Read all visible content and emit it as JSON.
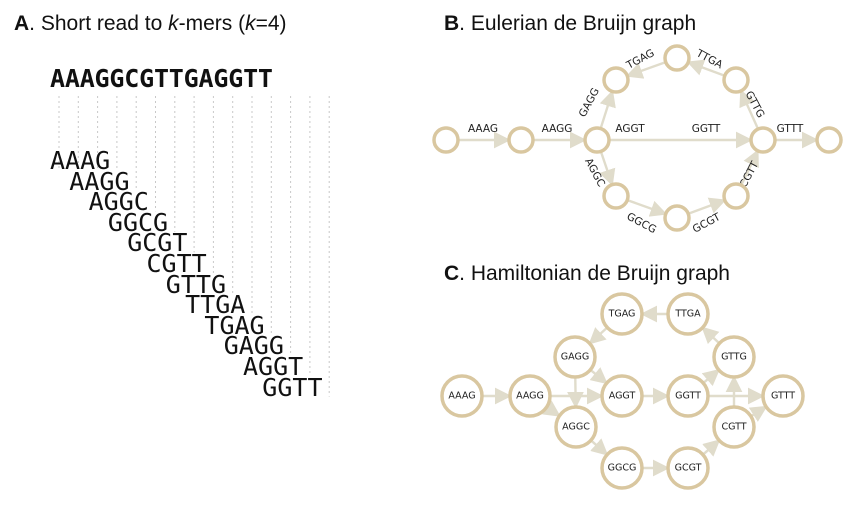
{
  "panel_a": {
    "letter": "A",
    "title_text": ". Short read to ",
    "title_k": "k",
    "title_suffix": "-mers (",
    "title_k2": "k",
    "title_eq": "=4)",
    "read": "AAAGGCGTTGAGGTT",
    "kmers": [
      "AAAG",
      "AAGG",
      "AGGC",
      "GGCG",
      "GCGT",
      "CGTT",
      "GTTG",
      "TTGA",
      "TGAG",
      "GAGG",
      "AGGT",
      "GGTT"
    ]
  },
  "panel_b": {
    "letter": "B",
    "title_text": ". Eulerian de Bruijn graph",
    "edge_labels": [
      "AAAG",
      "AAGG",
      "AGGT",
      "GGTT",
      "GTTT",
      "GAGG",
      "TGAG",
      "TTGA",
      "GTTG",
      "AGGC",
      "GGCG",
      "GCGT",
      "CGTT"
    ]
  },
  "panel_c": {
    "letter": "C",
    "title_text": ". Hamiltonian de Bruijn graph",
    "node_labels": [
      "AAAG",
      "AAGG",
      "GAGG",
      "AGGC",
      "TGAG",
      "TTGA",
      "AGGT",
      "GGTT",
      "GTTG",
      "GTTT",
      "CGTT",
      "GGCG",
      "GCGT"
    ]
  },
  "colors": {
    "node_stroke": "#d9c7a0",
    "edge": "#e0dccb"
  }
}
